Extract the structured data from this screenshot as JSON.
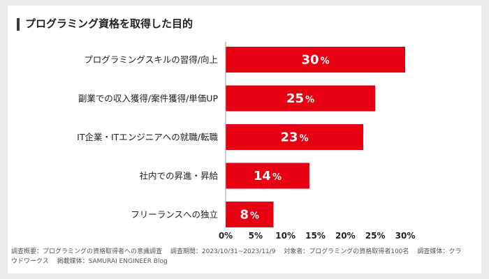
{
  "title": "プログラミング資格を取得した目的",
  "chart_data": {
    "type": "bar",
    "orientation": "horizontal",
    "title": "プログラミング資格を取得した目的",
    "categories": [
      "プログラミングスキルの習得/向上",
      "副業での収入獲得/案件獲得/単価UP",
      "IT企業・ITエンジニアへの就職/転職",
      "社内での昇進・昇給",
      "フリーランスへの独立"
    ],
    "values": [
      30,
      25,
      23,
      14,
      8
    ],
    "value_suffix": "%",
    "xlim": [
      0,
      30
    ],
    "xticks": [
      "0%",
      "5%",
      "10%",
      "15%",
      "20%",
      "25%",
      "30%"
    ],
    "xtick_values": [
      0,
      5,
      10,
      15,
      20,
      25,
      30
    ],
    "bar_color": "#e60012",
    "label_color": "#ffffff",
    "grid": false
  },
  "footnote": "調査概要：プログラミングの資格取得者への意識調査　 調査期間：2023/10/31~2023/11/9　 対象者：プログラミングの資格取得者100名　 調査媒体：クラウドワークス　 掲載媒体：SAMURAI ENGINEER Blog"
}
